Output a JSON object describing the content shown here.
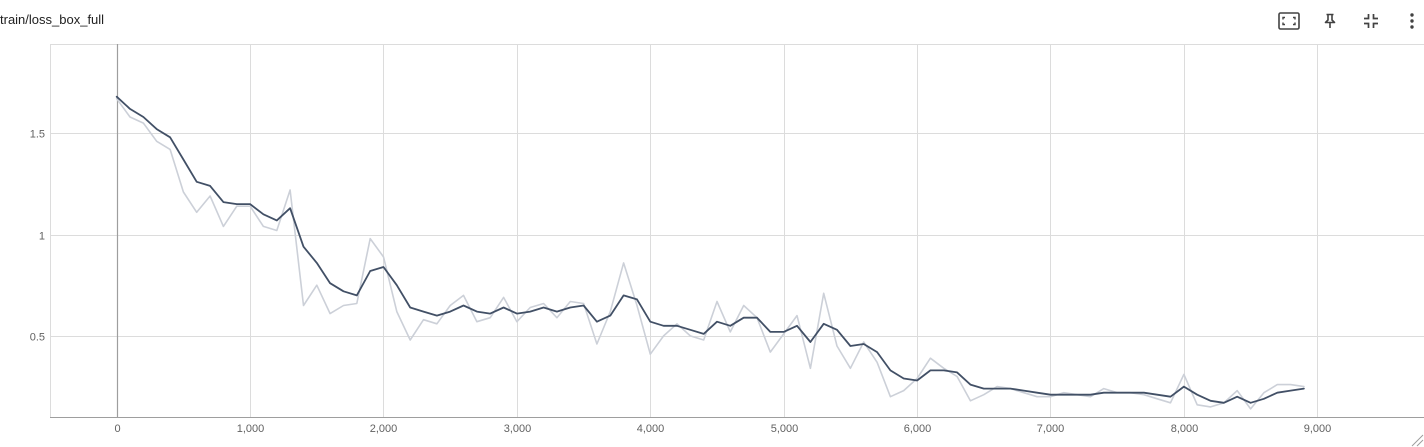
{
  "card": {
    "title": "train/loss_box_full"
  },
  "toolbar": {
    "icons": [
      "fit-to-data-icon",
      "pin-icon",
      "collapse-icon",
      "more-options-icon"
    ]
  },
  "colors": {
    "smoothed": "#425066",
    "raw": "#ccd0d8",
    "grid": "#dcdcdc",
    "axis": "#9e9e9e"
  },
  "chart_data": {
    "type": "line",
    "title": "",
    "xlabel": "",
    "ylabel": "",
    "xlim": [
      -500,
      9800
    ],
    "ylim": [
      0.1,
      1.94
    ],
    "x_ticks": [
      0,
      1000,
      2000,
      3000,
      4000,
      5000,
      6000,
      7000,
      8000,
      9000
    ],
    "x_tick_labels": [
      "0",
      "1,000",
      "2,000",
      "3,000",
      "4,000",
      "5,000",
      "6,000",
      "7,000",
      "8,000",
      "9,000"
    ],
    "y_ticks": [
      0.5,
      1,
      1.5
    ],
    "y_tick_labels": [
      "0.5",
      "1",
      "1.5"
    ],
    "grid": true,
    "series": [
      {
        "role": "raw",
        "x": [
          0,
          100,
          200,
          300,
          400,
          500,
          600,
          700,
          800,
          900,
          1000,
          1100,
          1200,
          1300,
          1400,
          1500,
          1600,
          1700,
          1800,
          1900,
          2000,
          2100,
          2200,
          2300,
          2400,
          2500,
          2600,
          2700,
          2800,
          2900,
          3000,
          3100,
          3200,
          3300,
          3400,
          3500,
          3600,
          3700,
          3800,
          3900,
          4000,
          4100,
          4200,
          4300,
          4400,
          4500,
          4600,
          4700,
          4800,
          4900,
          5000,
          5100,
          5200,
          5300,
          5400,
          5500,
          5600,
          5700,
          5800,
          5900,
          6000,
          6100,
          6200,
          6300,
          6400,
          6500,
          6600,
          6700,
          6800,
          6900,
          7000,
          7100,
          7200,
          7300,
          7400,
          7500,
          7600,
          7700,
          7800,
          7900,
          8000,
          8100,
          8200,
          8300,
          8400,
          8500,
          8600,
          8700,
          8800,
          8900
        ],
        "values": [
          1.67,
          1.58,
          1.55,
          1.46,
          1.42,
          1.21,
          1.11,
          1.19,
          1.04,
          1.14,
          1.14,
          1.04,
          1.02,
          1.22,
          0.65,
          0.75,
          0.61,
          0.65,
          0.66,
          0.98,
          0.89,
          0.62,
          0.48,
          0.58,
          0.56,
          0.65,
          0.7,
          0.57,
          0.59,
          0.69,
          0.57,
          0.64,
          0.66,
          0.59,
          0.67,
          0.66,
          0.46,
          0.62,
          0.86,
          0.65,
          0.41,
          0.5,
          0.56,
          0.5,
          0.48,
          0.67,
          0.52,
          0.65,
          0.59,
          0.42,
          0.51,
          0.6,
          0.34,
          0.71,
          0.45,
          0.34,
          0.47,
          0.37,
          0.2,
          0.23,
          0.29,
          0.39,
          0.34,
          0.3,
          0.18,
          0.21,
          0.25,
          0.24,
          0.22,
          0.2,
          0.2,
          0.22,
          0.21,
          0.2,
          0.24,
          0.22,
          0.22,
          0.21,
          0.19,
          0.17,
          0.31,
          0.16,
          0.15,
          0.17,
          0.23,
          0.14,
          0.22,
          0.26,
          0.26,
          0.25
        ]
      },
      {
        "role": "smoothed",
        "x": [
          0,
          100,
          200,
          300,
          400,
          500,
          600,
          700,
          800,
          900,
          1000,
          1100,
          1200,
          1300,
          1400,
          1500,
          1600,
          1700,
          1800,
          1900,
          2000,
          2100,
          2200,
          2300,
          2400,
          2500,
          2600,
          2700,
          2800,
          2900,
          3000,
          3100,
          3200,
          3300,
          3400,
          3500,
          3600,
          3700,
          3800,
          3900,
          4000,
          4100,
          4200,
          4300,
          4400,
          4500,
          4600,
          4700,
          4800,
          4900,
          5000,
          5100,
          5200,
          5300,
          5400,
          5500,
          5600,
          5700,
          5800,
          5900,
          6000,
          6100,
          6200,
          6300,
          6400,
          6500,
          6600,
          6700,
          6800,
          6900,
          7000,
          7100,
          7200,
          7300,
          7400,
          7500,
          7600,
          7700,
          7800,
          7900,
          8000,
          8100,
          8200,
          8300,
          8400,
          8500,
          8600,
          8700,
          8800,
          8900
        ],
        "values": [
          1.68,
          1.62,
          1.58,
          1.52,
          1.48,
          1.37,
          1.26,
          1.24,
          1.16,
          1.15,
          1.15,
          1.1,
          1.07,
          1.13,
          0.94,
          0.86,
          0.76,
          0.72,
          0.7,
          0.82,
          0.84,
          0.75,
          0.64,
          0.62,
          0.6,
          0.62,
          0.65,
          0.62,
          0.61,
          0.64,
          0.61,
          0.62,
          0.64,
          0.62,
          0.64,
          0.65,
          0.57,
          0.6,
          0.7,
          0.68,
          0.57,
          0.55,
          0.55,
          0.53,
          0.51,
          0.57,
          0.55,
          0.59,
          0.59,
          0.52,
          0.52,
          0.55,
          0.47,
          0.56,
          0.53,
          0.45,
          0.46,
          0.42,
          0.33,
          0.29,
          0.28,
          0.33,
          0.33,
          0.32,
          0.26,
          0.24,
          0.24,
          0.24,
          0.23,
          0.22,
          0.21,
          0.21,
          0.21,
          0.21,
          0.22,
          0.22,
          0.22,
          0.22,
          0.21,
          0.2,
          0.25,
          0.21,
          0.18,
          0.17,
          0.2,
          0.17,
          0.19,
          0.22,
          0.23,
          0.24
        ]
      }
    ]
  }
}
